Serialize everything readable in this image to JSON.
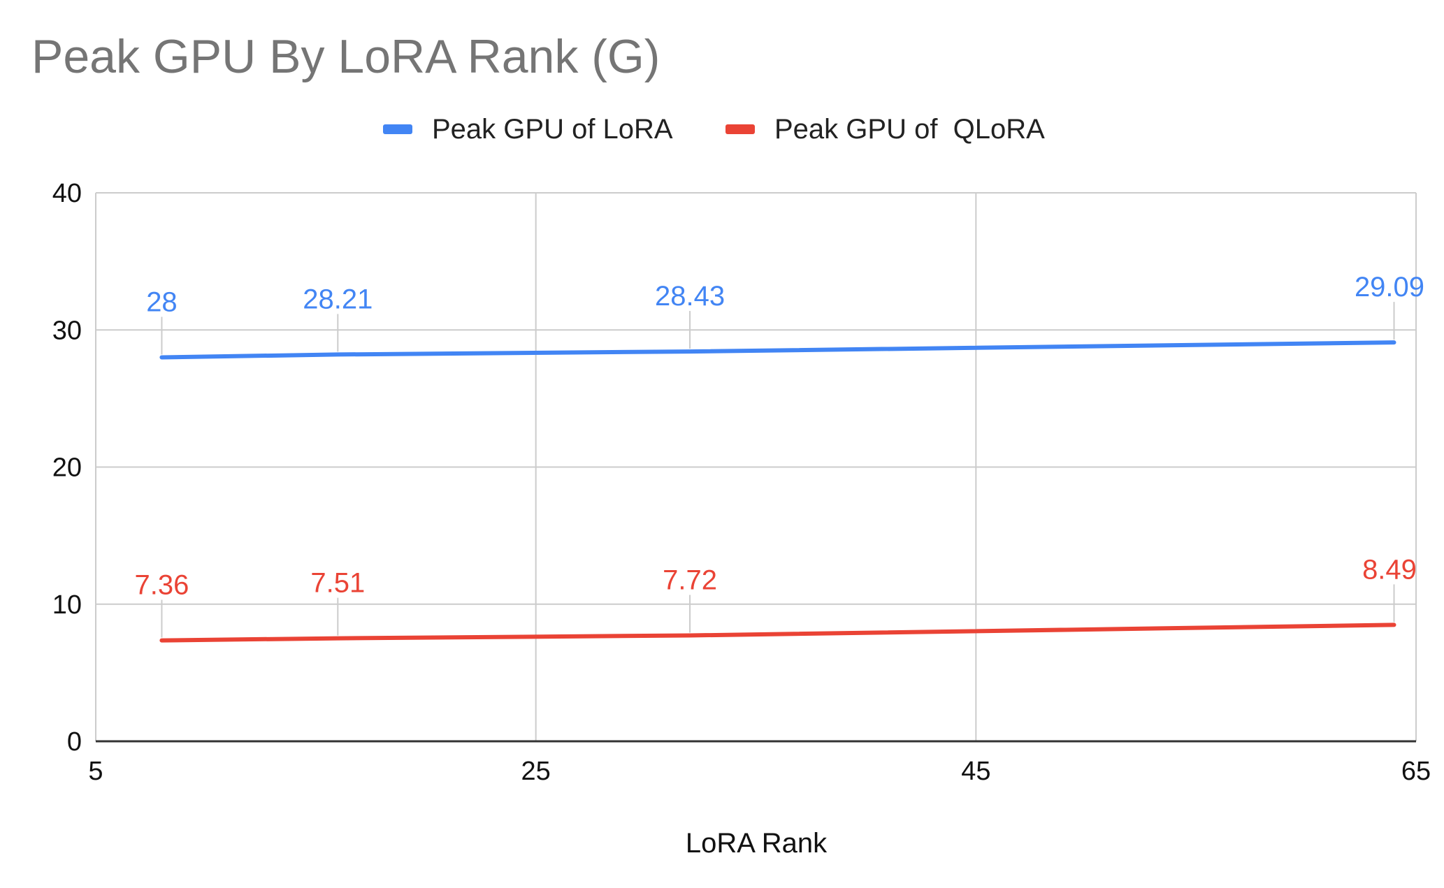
{
  "chart_data": {
    "type": "line",
    "title": "Peak GPU By LoRA Rank (G)",
    "xlabel": "LoRA Rank",
    "ylabel": "",
    "xlim": [
      5,
      65
    ],
    "ylim": [
      0,
      40
    ],
    "x_ticks": [
      5,
      25,
      45,
      65
    ],
    "y_ticks": [
      0,
      10,
      20,
      30,
      40
    ],
    "grid": true,
    "legend_position": "top-center",
    "x": [
      8,
      16,
      32,
      64
    ],
    "series": [
      {
        "name": "Peak GPU of LoRA",
        "color": "#4285f4",
        "values": [
          28,
          28.21,
          28.43,
          29.09
        ],
        "labels": [
          "28",
          "28.21",
          "28.43",
          "29.09"
        ]
      },
      {
        "name": "Peak GPU of  QLoRA",
        "color": "#ea4335",
        "values": [
          7.36,
          7.51,
          7.72,
          8.49
        ],
        "labels": [
          "7.36",
          "7.51",
          "7.72",
          "8.49"
        ]
      }
    ]
  }
}
